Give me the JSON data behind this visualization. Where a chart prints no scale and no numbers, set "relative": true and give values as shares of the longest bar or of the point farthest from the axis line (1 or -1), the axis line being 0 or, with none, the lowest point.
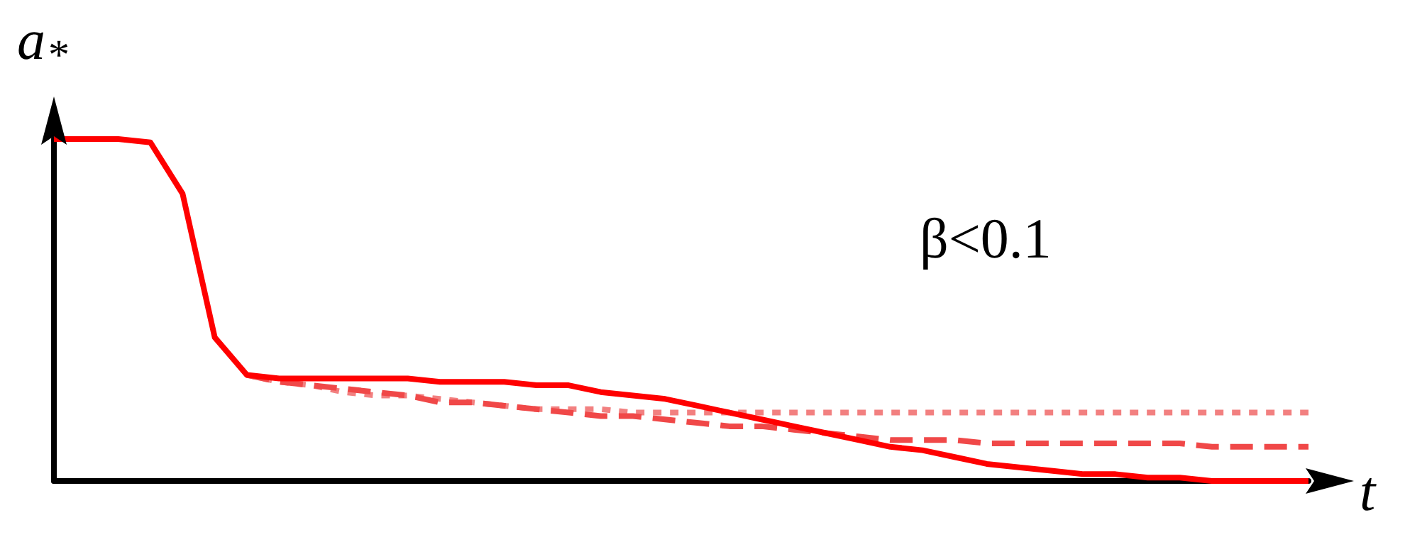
{
  "chart_data": {
    "type": "line",
    "relative": true,
    "xlabel": "t",
    "ylabel": "a$_{*}$",
    "annotations": [
      "β<0.1"
    ],
    "marker": "none",
    "grid": false,
    "categories": [
      null,
      null,
      null,
      null,
      null,
      null,
      null,
      null,
      null,
      null,
      null,
      null,
      null,
      null,
      null,
      null,
      null,
      null,
      null,
      null,
      null,
      null,
      null,
      null,
      null,
      null,
      null,
      null,
      null,
      null,
      null,
      null,
      null,
      null,
      null,
      null,
      null,
      null,
      null,
      null
    ],
    "series": [
      {
        "color": "#f28080",
        "line_style": "dotted",
        "values": [
          null,
          null,
          null,
          null,
          null,
          null,
          0.31,
          0.29,
          0.28,
          0.26,
          0.25,
          0.25,
          0.24,
          0.23,
          0.22,
          0.21,
          0.21,
          0.21,
          0.2,
          0.2,
          0.2,
          0.2,
          0.2,
          0.2,
          0.2,
          0.2,
          0.2,
          0.2,
          0.2,
          0.2,
          0.2,
          0.2,
          0.2,
          0.2,
          0.2,
          0.2,
          0.2,
          0.2,
          0.2,
          0.2
        ]
      },
      {
        "color": "#f04848",
        "line_style": "dashed",
        "values": [
          null,
          null,
          null,
          null,
          null,
          null,
          0.31,
          0.29,
          0.28,
          0.27,
          0.26,
          0.25,
          0.23,
          0.23,
          0.22,
          0.21,
          0.2,
          0.19,
          0.19,
          0.18,
          0.17,
          0.16,
          0.16,
          0.15,
          0.14,
          0.13,
          0.12,
          0.12,
          0.12,
          0.11,
          0.11,
          0.11,
          0.11,
          0.11,
          0.11,
          0.11,
          0.1,
          0.1,
          0.1,
          0.1
        ]
      },
      {
        "color": "#ff0000",
        "line_style": "solid",
        "values": [
          1,
          1,
          1,
          0.99,
          0.84,
          0.42,
          0.31,
          0.3,
          0.3,
          0.3,
          0.3,
          0.3,
          0.29,
          0.29,
          0.29,
          0.28,
          0.28,
          0.26,
          0.25,
          0.24,
          0.22,
          0.2,
          0.18,
          0.16,
          0.14,
          0.12,
          0.1,
          0.09,
          0.07,
          0.05,
          0.04,
          0.03,
          0.02,
          0.02,
          0.01,
          0.01,
          0,
          0,
          0,
          0
        ]
      }
    ]
  }
}
